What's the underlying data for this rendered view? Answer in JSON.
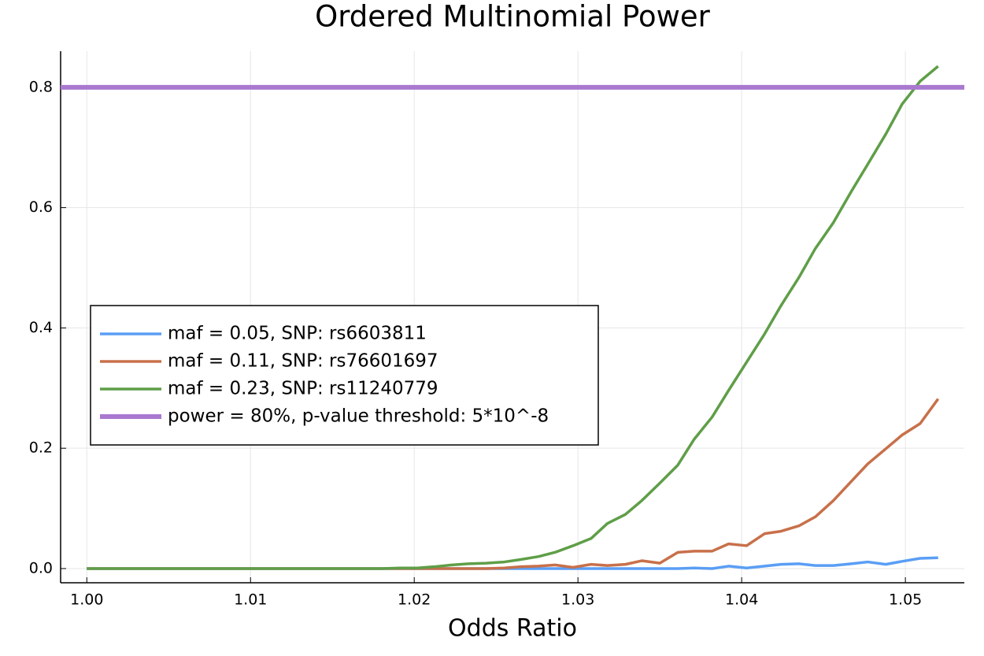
{
  "chart_data": {
    "type": "line",
    "title": "Ordered Multinomial Power",
    "xlabel": "Odds Ratio",
    "x": [
      1.0,
      1.0011,
      1.0021,
      1.0032,
      1.0042,
      1.0053,
      1.0064,
      1.0074,
      1.0085,
      1.0096,
      1.0106,
      1.0117,
      1.0127,
      1.0138,
      1.0149,
      1.0159,
      1.017,
      1.018,
      1.0191,
      1.0202,
      1.0212,
      1.0223,
      1.0233,
      1.0244,
      1.0255,
      1.0265,
      1.0276,
      1.0286,
      1.0297,
      1.0308,
      1.0318,
      1.0329,
      1.0339,
      1.035,
      1.0361,
      1.0371,
      1.0382,
      1.0392,
      1.0403,
      1.0414,
      1.0424,
      1.0435,
      1.0445,
      1.0456,
      1.0467,
      1.0477,
      1.0488,
      1.0498,
      1.0509,
      1.052
    ],
    "series": [
      {
        "name": "maf = 0.05, SNP: rs6603811",
        "color": "#5a9ef5",
        "values": [
          0,
          0,
          0,
          0,
          0,
          0,
          0,
          0,
          0,
          0,
          0,
          0,
          0,
          0,
          0,
          0,
          0,
          0,
          0,
          0,
          0,
          0,
          0,
          0,
          0,
          0,
          0,
          0,
          0,
          0,
          0,
          0,
          0,
          0,
          0,
          0.001,
          0,
          0.004,
          0.001,
          0.004,
          0.007,
          0.008,
          0.005,
          0.005,
          0.008,
          0.011,
          0.007,
          0.012,
          0.017,
          0.018
        ]
      },
      {
        "name": "maf = 0.11, SNP: rs76601697",
        "color": "#c8704a",
        "values": [
          0,
          0,
          0,
          0,
          0,
          0,
          0,
          0,
          0,
          0,
          0,
          0,
          0,
          0,
          0,
          0,
          0,
          0,
          0,
          0,
          0,
          0,
          0,
          0,
          0.001,
          0.003,
          0.004,
          0.006,
          0.002,
          0.007,
          0.005,
          0.007,
          0.013,
          0.009,
          0.027,
          0.029,
          0.029,
          0.041,
          0.038,
          0.058,
          0.062,
          0.071,
          0.086,
          0.113,
          0.145,
          0.174,
          0.199,
          0.222,
          0.241,
          0.282
        ]
      },
      {
        "name": "maf = 0.23, SNP: rs11240779",
        "color": "#5f9e48",
        "values": [
          0,
          0,
          0,
          0,
          0,
          0,
          0,
          0,
          0,
          0,
          0,
          0,
          0,
          0,
          0,
          0,
          0,
          0,
          0.001,
          0.001,
          0.003,
          0.006,
          0.008,
          0.009,
          0.011,
          0.015,
          0.02,
          0.027,
          0.038,
          0.05,
          0.075,
          0.09,
          0.113,
          0.142,
          0.172,
          0.215,
          0.252,
          0.296,
          0.343,
          0.39,
          0.437,
          0.484,
          0.532,
          0.575,
          0.627,
          0.672,
          0.722,
          0.772,
          0.81,
          0.835
        ]
      },
      {
        "name": "power = 80%, p-value threshold: 5*10^-8",
        "color": "#a979d0",
        "hline": 0.8
      }
    ],
    "xlim": [
      0.9984,
      1.0536
    ],
    "ylim": [
      -0.0236,
      0.86
    ],
    "xticks": [
      {
        "value": 1.0,
        "label": "1.00"
      },
      1.01,
      1.02,
      1.03,
      1.04,
      1.05
    ],
    "yticks": [
      {
        "value": 0,
        "label": "0.0"
      },
      0.2,
      0.4,
      0.6,
      0.8
    ],
    "grid": true,
    "legend": "left"
  }
}
